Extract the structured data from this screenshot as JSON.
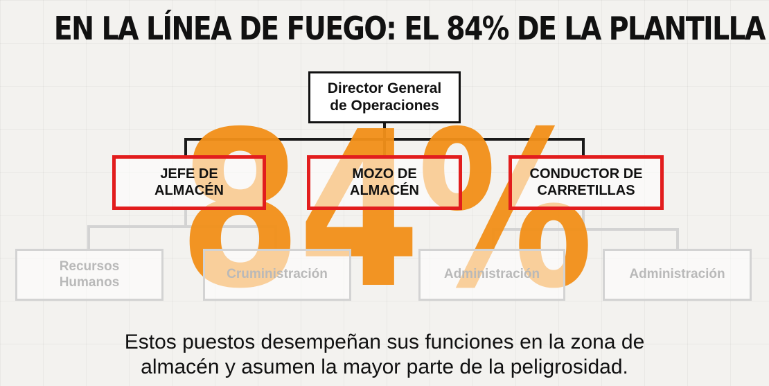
{
  "title": "EN LA LÍNEA DE FUEGO: EL 84% DE LA PLANTILLA",
  "big_number": "84%",
  "top_node": {
    "line1": "Director General",
    "line2": "de Operaciones"
  },
  "highlighted_nodes": [
    {
      "line1": "JEFE DE",
      "line2": "ALMACÉN"
    },
    {
      "line1": "MOZO DE",
      "line2": "ALMACÉN"
    },
    {
      "line1": "CONDUCTOR DE",
      "line2": "CARRETILLAS"
    }
  ],
  "faded_nodes": [
    {
      "line1": "Recursos",
      "line2": "Humanos"
    },
    {
      "line1": "Cruministración",
      "line2": ""
    },
    {
      "line1": "Administración",
      "line2": ""
    },
    {
      "line1": "Administración",
      "line2": ""
    }
  ],
  "caption": {
    "line1": "Estos puestos desempeñan sus funciones en la zona de",
    "line2": "almacén y asumen la mayor parte de la peligrosidad."
  },
  "colors": {
    "highlight_border": "#e21d1d",
    "big_number": "#f29019",
    "faded": "#d3d3d3"
  }
}
